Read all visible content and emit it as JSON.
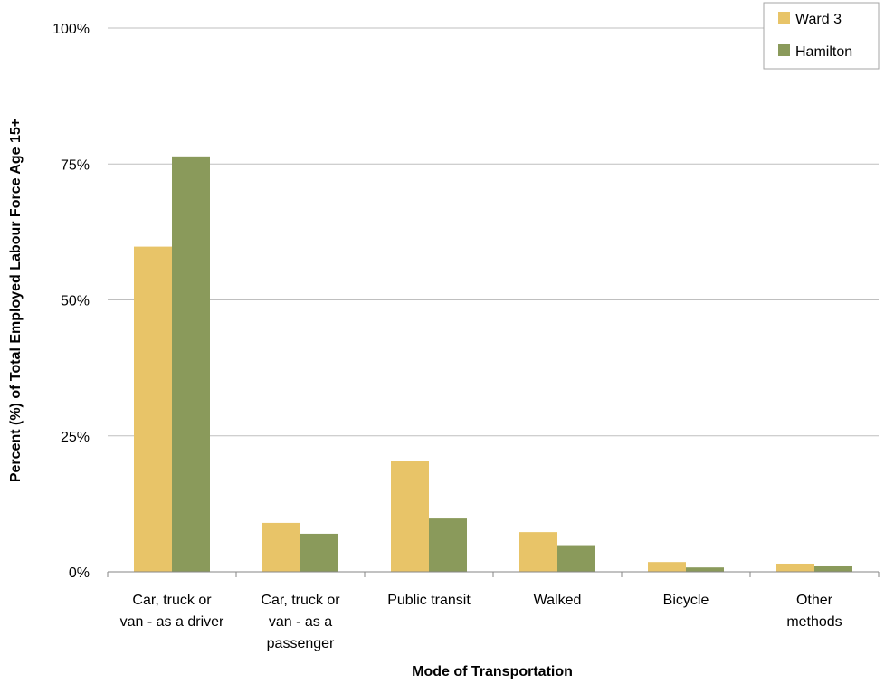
{
  "chart_data": {
    "type": "bar",
    "title": "",
    "xlabel": "Mode of Transportation",
    "ylabel": "Percent (%) of Total Employed Labour Force Age 15+",
    "ylim": [
      0,
      100
    ],
    "yticks": [
      0,
      25,
      50,
      75,
      100
    ],
    "ytick_labels": [
      "0%",
      "25%",
      "50%",
      "75%",
      "100%"
    ],
    "grid": true,
    "legend_position": "top-right",
    "categories": [
      [
        "Car, truck or",
        "van - as a driver"
      ],
      [
        "Car, truck or",
        "van - as a",
        "passenger"
      ],
      [
        "Public transit"
      ],
      [
        "Walked"
      ],
      [
        "Bicycle"
      ],
      [
        "Other",
        "methods"
      ]
    ],
    "series": [
      {
        "name": "Ward 3",
        "color": "#E8C468",
        "values": [
          59.8,
          9.0,
          20.3,
          7.3,
          1.8,
          1.5
        ]
      },
      {
        "name": "Hamilton",
        "color": "#8A9A5B",
        "values": [
          76.4,
          7.0,
          9.8,
          4.9,
          0.8,
          1.0
        ]
      }
    ]
  }
}
